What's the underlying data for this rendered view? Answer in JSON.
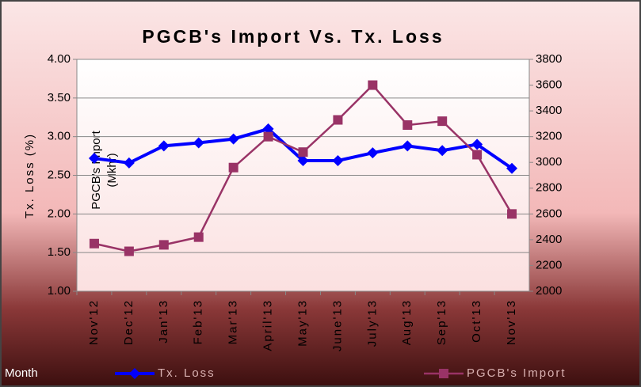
{
  "chart_data": {
    "type": "line",
    "title": "PGCB's Import Vs. Tx. Loss",
    "x_label": "Month",
    "y_label": "Tx. Loss (%)",
    "y2_label": [
      "PGCB's Import",
      "(Mkhr)"
    ],
    "categories": [
      "Nov'12",
      "Dec'12",
      "Jan'13",
      "Feb'13",
      "Mar'13",
      "April'13",
      "May'13",
      "June'13",
      "July'13",
      "Aug'13",
      "Sep'13",
      "Oct'13",
      "Nov'13"
    ],
    "series": [
      {
        "name": "Tx. Loss",
        "color": "#0000ff",
        "marker": "diamond",
        "axis": "y",
        "values": [
          2.72,
          2.66,
          2.88,
          2.92,
          2.97,
          3.1,
          2.69,
          2.69,
          2.79,
          2.88,
          2.82,
          2.9,
          2.59
        ]
      },
      {
        "name": "PGCB's Import",
        "color": "#993366",
        "marker": "square",
        "axis": "y2",
        "values": [
          2370,
          2310,
          2360,
          2420,
          2960,
          3200,
          3080,
          3330,
          3600,
          3290,
          3320,
          3060,
          2600
        ]
      }
    ],
    "ylim": [
      1,
      4
    ],
    "yticks": [
      {
        "value": 1,
        "label": "1.00"
      },
      {
        "value": 1.5,
        "label": "1.50"
      },
      {
        "value": 2,
        "label": "2.00"
      },
      {
        "value": 2.5,
        "label": "2.50"
      },
      {
        "value": 3,
        "label": "3.00"
      },
      {
        "value": 3.5,
        "label": "3.50"
      },
      {
        "value": 4,
        "label": "4.00"
      }
    ],
    "y2lim": [
      2000,
      3800
    ],
    "y2ticks": [
      2000,
      2200,
      2400,
      2600,
      2800,
      3000,
      3200,
      3400,
      3600,
      3800
    ],
    "grid": true
  }
}
